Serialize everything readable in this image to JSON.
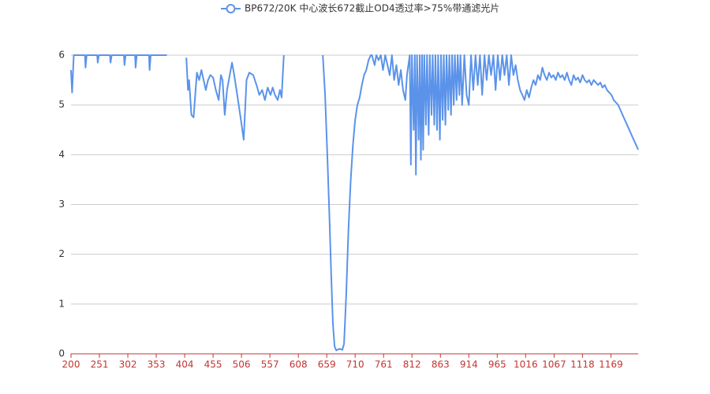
{
  "chart_data": {
    "type": "line",
    "legend": "top",
    "grid": true,
    "xlim": [
      200,
      1218
    ],
    "xticks": [
      200,
      251,
      302,
      353,
      404,
      455,
      506,
      557,
      608,
      659,
      710,
      761,
      812,
      863,
      914,
      965,
      1016,
      1067,
      1118,
      1169
    ],
    "ylim": [
      0,
      6
    ],
    "yticks": [
      0,
      1,
      2,
      3,
      4,
      5,
      6
    ],
    "series": [
      {
        "name": "BP672/20K 中心波长672截止OD4透过率>75%带通滤光片",
        "color": "#5b93ea",
        "x": [
          200,
          202,
          205,
          225,
          226,
          228,
          247,
          248,
          250,
          270,
          271,
          273,
          295,
          296,
          298,
          315,
          316,
          318,
          340,
          341,
          343,
          372,
          380,
          407,
          410,
          412,
          416,
          420,
          423,
          426,
          430,
          434,
          438,
          442,
          446,
          450,
          455,
          460,
          465,
          469,
          472,
          476,
          480,
          489,
          493,
          497,
          501,
          505,
          510,
          515,
          520,
          527,
          533,
          538,
          543,
          548,
          553,
          558,
          562,
          566,
          571,
          575,
          578,
          581,
          582,
          600,
          652,
          656,
          660,
          664,
          667,
          670,
          673,
          676,
          682,
          687,
          690,
          694,
          698,
          702,
          706,
          710,
          714,
          718,
          722,
          726,
          730,
          734,
          738,
          740,
          745,
          748,
          752,
          756,
          760,
          764,
          768,
          772,
          776,
          780,
          784,
          788,
          792,
          796,
          800,
          803,
          808,
          810,
          812,
          815,
          817,
          819,
          821,
          824,
          826,
          828,
          830,
          832,
          834,
          837,
          839,
          842,
          844,
          847,
          849,
          852,
          854,
          857,
          859,
          862,
          864,
          867,
          869,
          872,
          874,
          877,
          879,
          882,
          884,
          887,
          889,
          892,
          894,
          897,
          899,
          902,
          906,
          910,
          914,
          918,
          922,
          926,
          930,
          934,
          938,
          942,
          946,
          950,
          954,
          958,
          962,
          966,
          970,
          974,
          978,
          982,
          986,
          990,
          994,
          998,
          1002,
          1006,
          1010,
          1014,
          1018,
          1022,
          1026,
          1030,
          1034,
          1038,
          1042,
          1046,
          1050,
          1054,
          1058,
          1062,
          1066,
          1070,
          1074,
          1078,
          1082,
          1086,
          1090,
          1094,
          1098,
          1102,
          1106,
          1110,
          1114,
          1118,
          1122,
          1126,
          1130,
          1134,
          1138,
          1142,
          1146,
          1150,
          1154,
          1158,
          1162,
          1166,
          1170,
          1174,
          1178,
          1182,
          1186,
          1190,
          1194,
          1198,
          1202,
          1206,
          1210,
          1214,
          1218
        ],
        "values": [
          5.7,
          5.25,
          6,
          6,
          5.75,
          6,
          6,
          5.85,
          6,
          6,
          5.85,
          6,
          6,
          5.8,
          6,
          6,
          5.75,
          6,
          6,
          5.7,
          6,
          6,
          null,
          5.95,
          5.3,
          5.5,
          4.8,
          4.75,
          5.2,
          5.65,
          5.5,
          5.7,
          5.5,
          5.3,
          5.5,
          5.6,
          5.55,
          5.3,
          5.1,
          5.6,
          5.5,
          4.8,
          5.3,
          5.85,
          5.6,
          5.3,
          5.0,
          4.7,
          4.3,
          5.5,
          5.65,
          5.6,
          5.4,
          5.2,
          5.3,
          5.1,
          5.35,
          5.2,
          5.35,
          5.2,
          5.1,
          5.3,
          5.15,
          5.8,
          6,
          null,
          6,
          5.2,
          4.0,
          2.7,
          1.6,
          0.6,
          0.15,
          0.07,
          0.1,
          0.08,
          0.2,
          1.2,
          2.5,
          3.5,
          4.2,
          4.7,
          5.0,
          5.15,
          5.4,
          5.6,
          5.7,
          5.9,
          6,
          6,
          5.8,
          6,
          5.9,
          6,
          5.7,
          6,
          5.8,
          5.6,
          6,
          5.5,
          5.8,
          5.4,
          5.7,
          5.3,
          5.1,
          5.6,
          6,
          3.8,
          6,
          4.5,
          6,
          3.6,
          6,
          4.3,
          6,
          3.9,
          6,
          4.1,
          6,
          4.6,
          6,
          4.4,
          6,
          4.8,
          6,
          4.6,
          6,
          4.5,
          6,
          4.3,
          6,
          4.7,
          6,
          4.6,
          6,
          4.9,
          6,
          4.8,
          6,
          5.0,
          6,
          5.1,
          6,
          5.2,
          6,
          5.0,
          6,
          5.2,
          5.0,
          6,
          5.3,
          6,
          5.4,
          6,
          5.2,
          6,
          5.5,
          6,
          5.6,
          6,
          5.3,
          6,
          5.5,
          6,
          5.6,
          6,
          5.4,
          6,
          5.6,
          5.8,
          5.5,
          5.3,
          5.2,
          5.1,
          5.3,
          5.15,
          5.35,
          5.5,
          5.4,
          5.6,
          5.5,
          5.75,
          5.6,
          5.5,
          5.65,
          5.55,
          5.6,
          5.5,
          5.65,
          5.55,
          5.6,
          5.5,
          5.65,
          5.5,
          5.4,
          5.6,
          5.5,
          5.55,
          5.45,
          5.6,
          5.5,
          5.45,
          5.5,
          5.4,
          5.5,
          5.45,
          5.4,
          5.45,
          5.35,
          5.4,
          5.3,
          5.25,
          5.2,
          5.1,
          5.05,
          5.0,
          4.9,
          4.8,
          4.7,
          4.6,
          4.5,
          4.4,
          4.3,
          4.2,
          4.1
        ]
      }
    ]
  }
}
